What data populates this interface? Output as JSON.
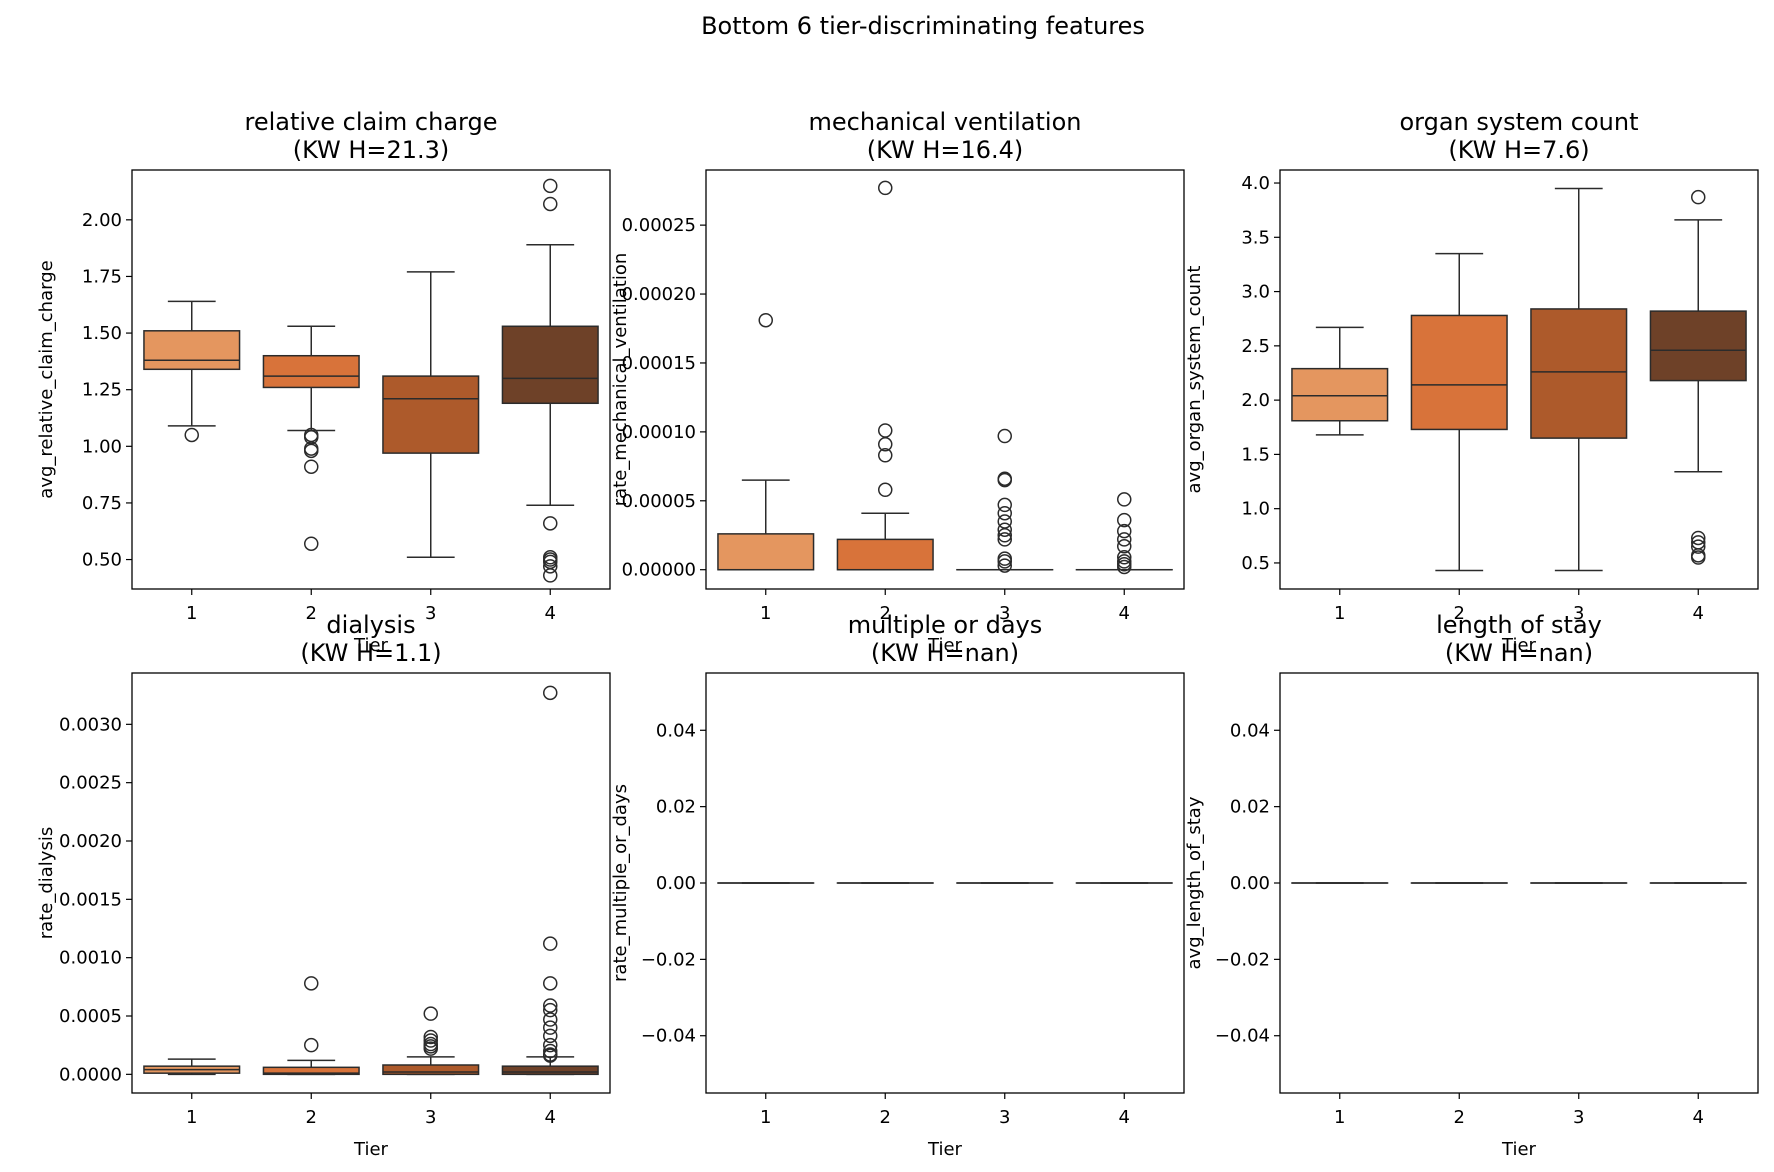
{
  "figure": {
    "suptitle": "Bottom 6 tier-discriminating features"
  },
  "colors": {
    "tiers": [
      "#e4965f",
      "#d8733a",
      "#ad5a2b",
      "#6e4128"
    ],
    "edge": "#2b2b2b",
    "background": "#ffffff"
  },
  "chart_data": [
    {
      "type": "box",
      "title": "relative claim charge",
      "subtitle": "(KW H=21.3)",
      "xlabel": "Tier",
      "ylabel": "avg_relative_claim_charge",
      "categories": [
        "1",
        "2",
        "3",
        "4"
      ],
      "ylim": [
        0.37,
        2.22
      ],
      "yticks": [
        0.5,
        0.75,
        1.0,
        1.25,
        1.5,
        1.75,
        2.0
      ],
      "ytick_labels": [
        "0.50",
        "0.75",
        "1.00",
        "1.25",
        "1.50",
        "1.75",
        "2.00"
      ],
      "boxes": [
        {
          "whislo": 1.09,
          "q1": 1.34,
          "med": 1.38,
          "q3": 1.51,
          "whishi": 1.64,
          "fliers": [
            1.05
          ]
        },
        {
          "whislo": 1.07,
          "q1": 1.26,
          "med": 1.31,
          "q3": 1.4,
          "whishi": 1.53,
          "fliers": [
            1.05,
            1.04,
            0.99,
            0.98,
            0.91,
            0.57
          ]
        },
        {
          "whislo": 0.51,
          "q1": 0.97,
          "med": 1.21,
          "q3": 1.31,
          "whishi": 1.77,
          "fliers": []
        },
        {
          "whislo": 0.74,
          "q1": 1.19,
          "med": 1.3,
          "q3": 1.53,
          "whishi": 1.89,
          "fliers": [
            2.15,
            2.07,
            0.66,
            0.51,
            0.5,
            0.49,
            0.47,
            0.43
          ]
        }
      ]
    },
    {
      "type": "box",
      "title": "mechanical ventilation",
      "subtitle": "(KW H=16.4)",
      "xlabel": "Tier",
      "ylabel": "rate_mechanical_ventilation",
      "categories": [
        "1",
        "2",
        "3",
        "4"
      ],
      "ylim": [
        -1.4e-05,
        0.00029
      ],
      "yticks": [
        0,
        5e-05,
        0.0001,
        0.00015,
        0.0002,
        0.00025
      ],
      "ytick_labels": [
        "0.00000",
        "0.00005",
        "0.00010",
        "0.00015",
        "0.00020",
        "0.00025"
      ],
      "boxes": [
        {
          "whislo": 0,
          "q1": 0,
          "med": 0,
          "q3": 2.6e-05,
          "whishi": 6.5e-05,
          "fliers": [
            0.000181
          ]
        },
        {
          "whislo": 0,
          "q1": 0,
          "med": 0,
          "q3": 2.2e-05,
          "whishi": 4.1e-05,
          "fliers": [
            0.000277,
            0.000101,
            9.1e-05,
            8.3e-05,
            5.8e-05
          ]
        },
        {
          "whislo": 0,
          "q1": 0,
          "med": 0,
          "q3": 0,
          "whishi": 0,
          "fliers": [
            9.7e-05,
            6.6e-05,
            6.5e-05,
            4.7e-05,
            4.1e-05,
            3.5e-05,
            2.9e-05,
            2.5e-05,
            2.2e-05,
            8e-06,
            6e-06,
            3e-06
          ]
        },
        {
          "whislo": 0,
          "q1": 0,
          "med": 0,
          "q3": 0,
          "whishi": 0,
          "fliers": [
            5.1e-05,
            3.6e-05,
            2.8e-05,
            2.2e-05,
            1.7e-05,
            9e-06,
            6e-06,
            4e-06,
            2e-06
          ]
        }
      ]
    },
    {
      "type": "box",
      "title": "organ system count",
      "subtitle": "(KW H=7.6)",
      "xlabel": "Tier",
      "ylabel": "avg_organ_system_count",
      "categories": [
        "1",
        "2",
        "3",
        "4"
      ],
      "ylim": [
        0.26,
        4.12
      ],
      "yticks": [
        0.5,
        1.0,
        1.5,
        2.0,
        2.5,
        3.0,
        3.5,
        4.0
      ],
      "ytick_labels": [
        "0.5",
        "1.0",
        "1.5",
        "2.0",
        "2.5",
        "3.0",
        "3.5",
        "4.0"
      ],
      "boxes": [
        {
          "whislo": 1.68,
          "q1": 1.81,
          "med": 2.04,
          "q3": 2.29,
          "whishi": 2.67,
          "fliers": []
        },
        {
          "whislo": 0.43,
          "q1": 1.73,
          "med": 2.14,
          "q3": 2.78,
          "whishi": 3.35,
          "fliers": []
        },
        {
          "whislo": 0.43,
          "q1": 1.65,
          "med": 2.26,
          "q3": 2.84,
          "whishi": 3.95,
          "fliers": []
        },
        {
          "whislo": 1.34,
          "q1": 2.18,
          "med": 2.46,
          "q3": 2.82,
          "whishi": 3.66,
          "fliers": [
            3.87,
            0.73,
            0.69,
            0.65,
            0.57,
            0.55
          ]
        }
      ]
    },
    {
      "type": "box",
      "title": "dialysis",
      "subtitle": "(KW H=1.1)",
      "xlabel": "Tier",
      "ylabel": "rate_dialysis",
      "categories": [
        "1",
        "2",
        "3",
        "4"
      ],
      "ylim": [
        -0.00016,
        0.00344
      ],
      "yticks": [
        0,
        0.0005,
        0.001,
        0.0015,
        0.002,
        0.0025,
        0.003
      ],
      "ytick_labels": [
        "0.0000",
        "0.0005",
        "0.0010",
        "0.0015",
        "0.0020",
        "0.0025",
        "0.0030"
      ],
      "boxes": [
        {
          "whislo": 0,
          "q1": 1e-05,
          "med": 4e-05,
          "q3": 7e-05,
          "whishi": 0.00013,
          "fliers": []
        },
        {
          "whislo": 0,
          "q1": 0,
          "med": 1e-05,
          "q3": 6e-05,
          "whishi": 0.00012,
          "fliers": [
            0.00078,
            0.00025
          ]
        },
        {
          "whislo": 0,
          "q1": 0,
          "med": 2e-05,
          "q3": 8e-05,
          "whishi": 0.00015,
          "fliers": [
            0.00052,
            0.00032,
            0.00029,
            0.00026,
            0.00024,
            0.00022
          ]
        },
        {
          "whislo": 0,
          "q1": 0,
          "med": 2e-05,
          "q3": 7e-05,
          "whishi": 0.00015,
          "fliers": [
            0.00327,
            0.00112,
            0.00078,
            0.00059,
            0.00055,
            0.00047,
            0.0004,
            0.00033,
            0.00025,
            0.0002,
            0.00017,
            0.00016
          ]
        }
      ]
    },
    {
      "type": "box",
      "title": "multiple or days",
      "subtitle": "(KW H=nan)",
      "xlabel": "Tier",
      "ylabel": "rate_multiple_or_days",
      "categories": [
        "1",
        "2",
        "3",
        "4"
      ],
      "ylim": [
        -0.055,
        0.055
      ],
      "yticks": [
        -0.04,
        -0.02,
        0.0,
        0.02,
        0.04
      ],
      "ytick_labels": [
        "−0.04",
        "−0.02",
        "0.00",
        "0.02",
        "0.04"
      ],
      "boxes": [
        {
          "whislo": 0,
          "q1": 0,
          "med": 0,
          "q3": 0,
          "whishi": 0,
          "fliers": []
        },
        {
          "whislo": 0,
          "q1": 0,
          "med": 0,
          "q3": 0,
          "whishi": 0,
          "fliers": []
        },
        {
          "whislo": 0,
          "q1": 0,
          "med": 0,
          "q3": 0,
          "whishi": 0,
          "fliers": []
        },
        {
          "whislo": 0,
          "q1": 0,
          "med": 0,
          "q3": 0,
          "whishi": 0,
          "fliers": []
        }
      ]
    },
    {
      "type": "box",
      "title": "length of stay",
      "subtitle": "(KW H=nan)",
      "xlabel": "Tier",
      "ylabel": "avg_length_of_stay",
      "categories": [
        "1",
        "2",
        "3",
        "4"
      ],
      "ylim": [
        -0.055,
        0.055
      ],
      "yticks": [
        -0.04,
        -0.02,
        0.0,
        0.02,
        0.04
      ],
      "ytick_labels": [
        "−0.04",
        "−0.02",
        "0.00",
        "0.02",
        "0.04"
      ],
      "boxes": [
        {
          "whislo": 0,
          "q1": 0,
          "med": 0,
          "q3": 0,
          "whishi": 0,
          "fliers": []
        },
        {
          "whislo": 0,
          "q1": 0,
          "med": 0,
          "q3": 0,
          "whishi": 0,
          "fliers": []
        },
        {
          "whislo": 0,
          "q1": 0,
          "med": 0,
          "q3": 0,
          "whishi": 0,
          "fliers": []
        },
        {
          "whislo": 0,
          "q1": 0,
          "med": 0,
          "q3": 0,
          "whishi": 0,
          "fliers": []
        }
      ]
    }
  ]
}
